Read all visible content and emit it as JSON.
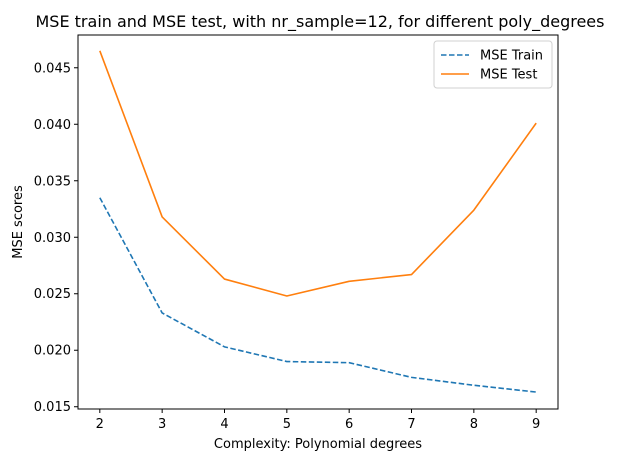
{
  "chart_data": {
    "type": "line",
    "title": "MSE train and MSE test, with nr_sample=12, for different poly_degrees",
    "xlabel": "Complexity: Polynomial degrees",
    "ylabel": "MSE scores",
    "x": [
      2,
      3,
      4,
      5,
      6,
      7,
      8,
      9
    ],
    "xlim": [
      1.65,
      9.35
    ],
    "ylim": [
      0.0148,
      0.0479
    ],
    "xticks": [
      2,
      3,
      4,
      5,
      6,
      7,
      8,
      9
    ],
    "yticks": [
      0.015,
      0.02,
      0.025,
      0.03,
      0.035,
      0.04,
      0.045
    ],
    "ytick_labels": [
      "0.015",
      "0.020",
      "0.025",
      "0.030",
      "0.035",
      "0.040",
      "0.045"
    ],
    "grid": false,
    "legend_position": "top-right",
    "series": [
      {
        "name": "MSE Train",
        "style": "dashed",
        "color": "#1f77b4",
        "values": [
          0.0335,
          0.0233,
          0.0203,
          0.019,
          0.0189,
          0.0176,
          0.0169,
          0.0163
        ]
      },
      {
        "name": "MSE Test",
        "style": "solid",
        "color": "#ff7f0e",
        "values": [
          0.0465,
          0.0318,
          0.0263,
          0.0248,
          0.0261,
          0.0267,
          0.0324,
          0.0401
        ]
      }
    ]
  }
}
